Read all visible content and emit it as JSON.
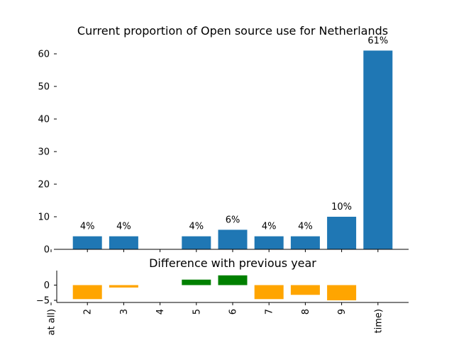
{
  "chart_data": [
    {
      "type": "bar",
      "title": "Current proportion of Open source use for Netherlands",
      "categories": [
        "at all)",
        "2",
        "3",
        "4",
        "5",
        "6",
        "7",
        "8",
        "9",
        "time)"
      ],
      "values": [
        0,
        4,
        4,
        0,
        4,
        6,
        4,
        4,
        10,
        61
      ],
      "data_labels": [
        "",
        "4%",
        "4%",
        "",
        "4%",
        "6%",
        "4%",
        "4%",
        "10%",
        "61%"
      ],
      "yticks": [
        "0",
        "10",
        "20",
        "30",
        "40",
        "50",
        "60"
      ],
      "ylim": [
        0,
        64
      ],
      "grid": false,
      "color": "#1f77b4"
    },
    {
      "type": "bar",
      "title": "Difference with previous year",
      "categories": [
        "at all)",
        "2",
        "3",
        "4",
        "5",
        "6",
        "7",
        "8",
        "9",
        "time)"
      ],
      "values": [
        0,
        -4.6,
        -0.8,
        0,
        1.8,
        3.2,
        -4.6,
        -3.2,
        -5.0,
        0
      ],
      "yticks": [
        "0",
        "−5"
      ],
      "ylim": [
        -5.4,
        3.5
      ],
      "grid": false,
      "positive_color": "#008000",
      "negative_color": "#ffa500"
    }
  ]
}
